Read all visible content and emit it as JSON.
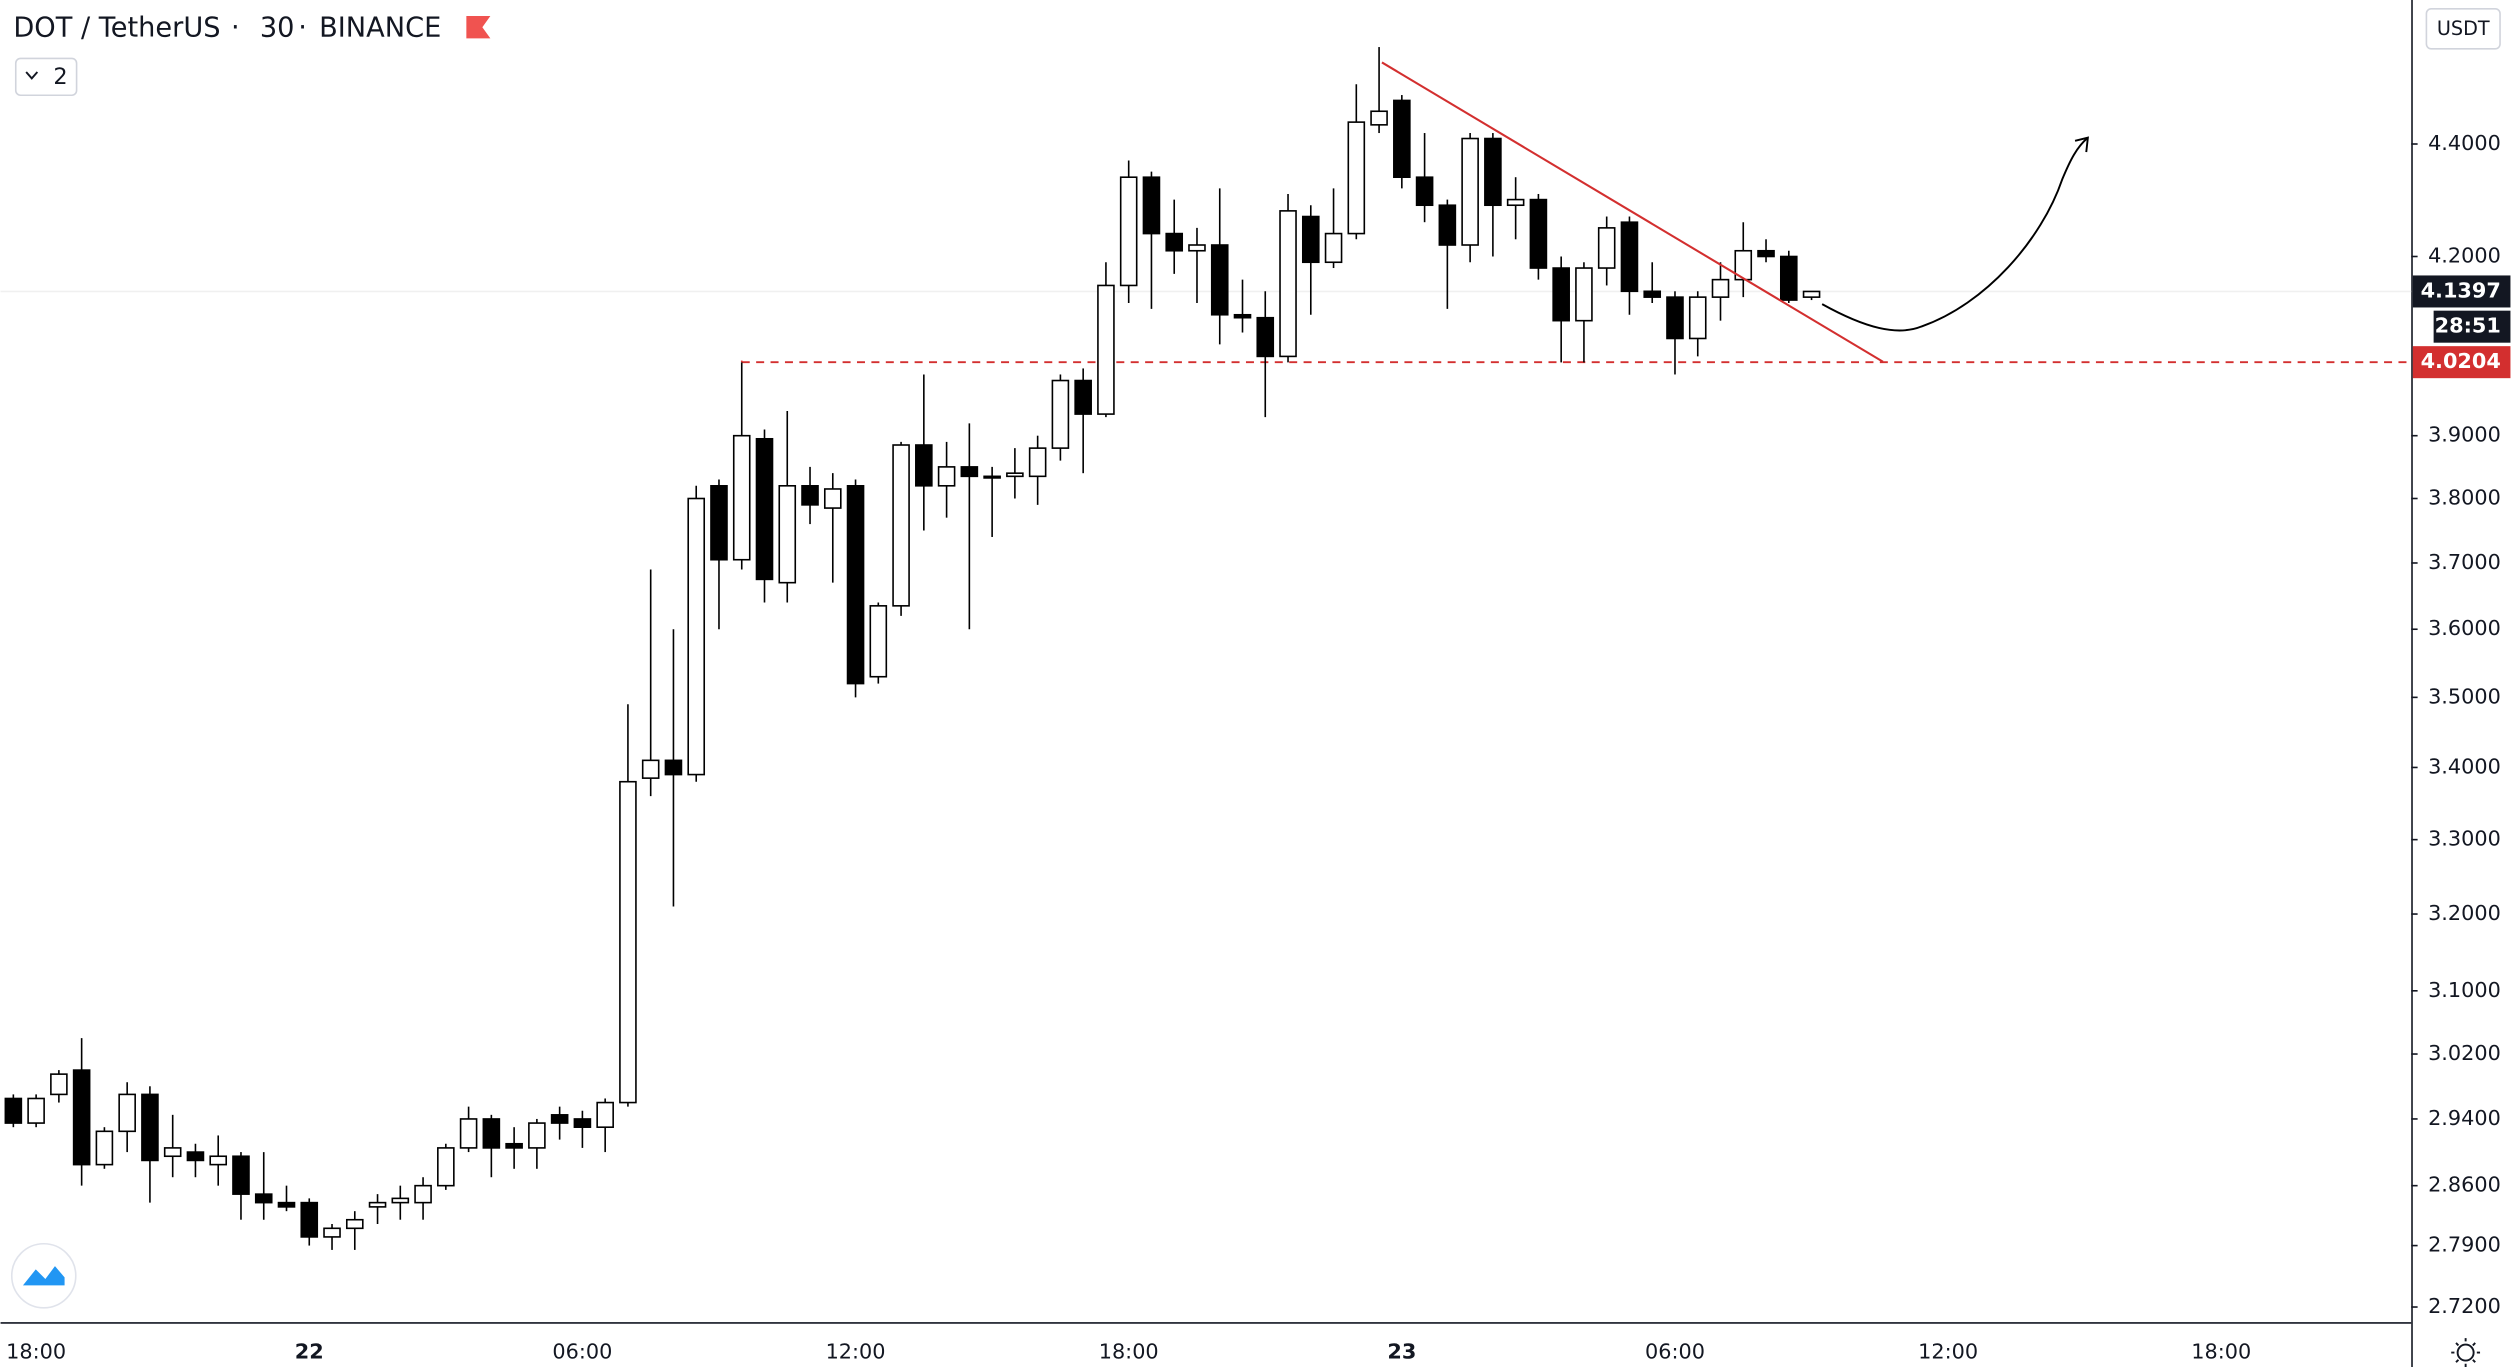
{
  "chart_data": {
    "type": "candlestick",
    "symbol": "DOT / TetherUS",
    "interval": "30",
    "exchange": "BINANCE",
    "indicators_count": "2",
    "currency": "USDT",
    "log_scale": true,
    "grid": false,
    "up_color": "#ffffff",
    "down_color": "#000000",
    "border_color": "#000000",
    "categories": [
      null,
      "18:00",
      null,
      null,
      null,
      null,
      null,
      null,
      null,
      null,
      null,
      null,
      null,
      "22",
      null,
      null,
      null,
      null,
      null,
      null,
      null,
      null,
      null,
      null,
      null,
      "06:00",
      null,
      null,
      null,
      null,
      null,
      null,
      null,
      null,
      null,
      null,
      null,
      "12:00",
      null,
      null,
      null,
      null,
      null,
      null,
      null,
      null,
      null,
      null,
      null,
      "18:00",
      null,
      null,
      null,
      null,
      null,
      null,
      null,
      null,
      null,
      null,
      null,
      "23",
      null,
      null,
      null,
      null,
      null,
      null,
      null,
      null,
      null,
      null,
      null,
      "06:00",
      null,
      null,
      null,
      null,
      null,
      null,
      null,
      null,
      null,
      null,
      null,
      "12:00",
      null,
      null,
      null,
      null,
      null,
      null,
      null,
      null,
      null,
      null,
      null,
      "18:00",
      null,
      null,
      null,
      null,
      null,
      null,
      null,
      null
    ],
    "open": [
      2.965,
      2.935,
      2.97,
      3.0,
      2.885,
      2.925,
      2.97,
      2.895,
      2.9,
      2.885,
      2.895,
      2.85,
      2.84,
      2.84,
      2.8,
      2.81,
      2.835,
      2.84,
      2.84,
      2.86,
      2.905,
      2.94,
      2.91,
      2.905,
      2.945,
      2.94,
      2.93,
      2.96,
      3.385,
      3.41,
      3.39,
      3.82,
      3.705,
      3.895,
      3.67,
      3.82,
      3.785,
      3.82,
      3.53,
      3.635,
      3.885,
      3.82,
      3.85,
      3.835,
      3.835,
      3.835,
      3.88,
      3.99,
      3.935,
      4.15,
      4.34,
      4.24,
      4.21,
      4.22,
      4.1,
      4.095,
      4.03,
      4.27,
      4.19,
      4.24,
      4.435,
      4.48,
      4.34,
      4.29,
      4.22,
      4.41,
      4.29,
      4.3,
      4.18,
      4.09,
      4.18,
      4.26,
      4.14,
      4.13,
      4.06,
      4.13,
      4.16,
      4.21,
      4.2,
      4.13,
      null,
      null,
      null,
      null,
      null,
      null,
      null,
      null,
      null,
      null,
      null,
      null,
      null,
      null,
      null,
      null,
      null,
      null,
      null,
      null,
      null,
      null,
      null,
      null,
      null,
      null
    ],
    "high": [
      2.97,
      2.97,
      3.0,
      3.04,
      2.93,
      2.985,
      2.98,
      2.945,
      2.91,
      2.92,
      2.9,
      2.9,
      2.86,
      2.845,
      2.815,
      2.83,
      2.85,
      2.86,
      2.87,
      2.91,
      2.955,
      2.945,
      2.93,
      2.94,
      2.955,
      2.95,
      2.965,
      3.49,
      3.69,
      3.6,
      3.82,
      3.83,
      4.02,
      3.91,
      3.94,
      3.85,
      3.84,
      3.83,
      3.64,
      3.89,
      4.0,
      3.89,
      3.92,
      3.85,
      3.88,
      3.9,
      4.0,
      4.01,
      4.19,
      4.37,
      4.35,
      4.3,
      4.25,
      4.32,
      4.16,
      4.14,
      4.31,
      4.29,
      4.32,
      4.51,
      4.58,
      4.49,
      4.42,
      4.3,
      4.42,
      4.42,
      4.34,
      4.31,
      4.2,
      4.19,
      4.27,
      4.27,
      4.19,
      4.14,
      4.14,
      4.19,
      4.26,
      4.23,
      4.21,
      4.14,
      null,
      null,
      null,
      null,
      null,
      null,
      null,
      null,
      null,
      null,
      null,
      null,
      null,
      null,
      null,
      null,
      null,
      null,
      null,
      null,
      null,
      null,
      null,
      null,
      null,
      null
    ],
    "low": [
      2.93,
      2.93,
      2.96,
      2.86,
      2.88,
      2.9,
      2.84,
      2.87,
      2.87,
      2.86,
      2.82,
      2.82,
      2.83,
      2.79,
      2.785,
      2.785,
      2.815,
      2.82,
      2.82,
      2.855,
      2.9,
      2.87,
      2.88,
      2.88,
      2.915,
      2.905,
      2.9,
      2.955,
      3.36,
      3.21,
      3.38,
      3.6,
      3.69,
      3.64,
      3.64,
      3.76,
      3.67,
      3.5,
      3.52,
      3.62,
      3.75,
      3.77,
      3.6,
      3.74,
      3.8,
      3.79,
      3.86,
      3.84,
      3.93,
      4.12,
      4.11,
      4.17,
      4.12,
      4.05,
      4.07,
      3.93,
      4.02,
      4.1,
      4.18,
      4.23,
      4.42,
      4.32,
      4.26,
      4.11,
      4.19,
      4.2,
      4.23,
      4.16,
      4.02,
      4.02,
      4.15,
      4.1,
      4.12,
      4.0,
      4.03,
      4.09,
      4.13,
      4.19,
      4.12,
      4.125,
      null,
      null,
      null,
      null,
      null,
      null,
      null,
      null,
      null,
      null,
      null,
      null,
      null,
      null,
      null,
      null,
      null,
      null,
      null,
      null,
      null,
      null,
      null,
      null,
      null,
      null
    ],
    "close": [
      2.935,
      2.965,
      2.995,
      2.885,
      2.925,
      2.97,
      2.89,
      2.905,
      2.89,
      2.895,
      2.85,
      2.84,
      2.835,
      2.8,
      2.81,
      2.82,
      2.84,
      2.845,
      2.86,
      2.905,
      2.94,
      2.905,
      2.905,
      2.935,
      2.935,
      2.93,
      2.96,
      3.38,
      3.41,
      3.39,
      3.8,
      3.705,
      3.9,
      3.675,
      3.82,
      3.79,
      3.815,
      3.52,
      3.635,
      3.885,
      3.82,
      3.85,
      3.835,
      3.835,
      3.84,
      3.88,
      3.99,
      3.935,
      4.15,
      4.34,
      4.24,
      4.21,
      4.22,
      4.1,
      4.095,
      4.03,
      4.28,
      4.19,
      4.24,
      4.44,
      4.46,
      4.34,
      4.29,
      4.22,
      4.41,
      4.29,
      4.3,
      4.18,
      4.09,
      4.18,
      4.25,
      4.14,
      4.13,
      4.06,
      4.13,
      4.16,
      4.21,
      4.2,
      4.125,
      4.1397,
      null,
      null,
      null,
      null,
      null,
      null,
      null,
      null,
      null,
      null,
      null,
      null,
      null,
      null,
      null,
      null,
      null,
      null,
      null,
      null,
      null,
      null,
      null,
      null,
      null,
      null
    ],
    "ylim": [
      2.703,
      4.67
    ],
    "yticks": [
      {
        "value": 4.4,
        "label": "4.4000"
      },
      {
        "value": 4.2,
        "label": "4.2000"
      },
      {
        "value": 3.9,
        "label": "3.9000"
      },
      {
        "value": 3.8,
        "label": "3.8000"
      },
      {
        "value": 3.7,
        "label": "3.7000"
      },
      {
        "value": 3.6,
        "label": "3.6000"
      },
      {
        "value": 3.5,
        "label": "3.5000"
      },
      {
        "value": 3.4,
        "label": "3.4000"
      },
      {
        "value": 3.3,
        "label": "3.3000"
      },
      {
        "value": 3.2,
        "label": "3.2000"
      },
      {
        "value": 3.1,
        "label": "3.1000"
      },
      {
        "value": 3.02,
        "label": "3.0200"
      },
      {
        "value": 2.94,
        "label": "2.9400"
      },
      {
        "value": 2.86,
        "label": "2.8600"
      },
      {
        "value": 2.79,
        "label": "2.7900"
      },
      {
        "value": 2.72,
        "label": "2.7200"
      }
    ],
    "last_price": 4.1397,
    "countdown": "28:51",
    "hline": {
      "value": 4.0204,
      "color": "#d32f2f"
    }
  }
}
